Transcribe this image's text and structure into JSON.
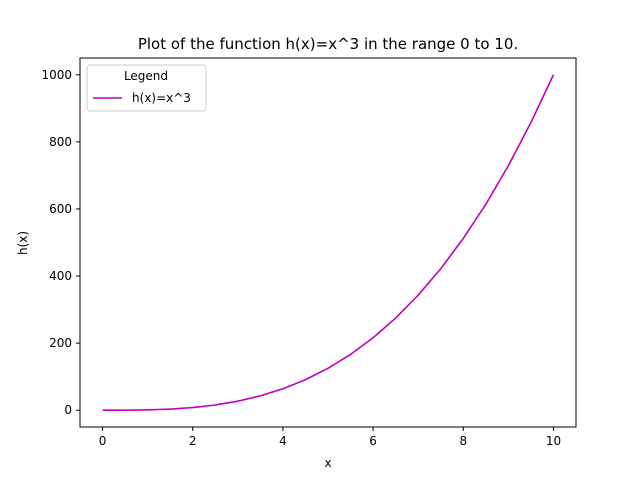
{
  "chart_data": {
    "type": "line",
    "title": "Plot of the function h(x)=x^3 in the range 0 to 10.",
    "xlabel": "x",
    "ylabel": "h(x)",
    "xlim": [
      -0.5,
      10.5
    ],
    "ylim": [
      -50,
      1050
    ],
    "xticks": [
      0,
      2,
      4,
      6,
      8,
      10
    ],
    "yticks": [
      0,
      200,
      400,
      600,
      800,
      1000
    ],
    "grid": false,
    "legend": {
      "title": "Legend",
      "placement": "top-left"
    },
    "series": [
      {
        "name": "h(x)=x^3",
        "color": "#bf00bf",
        "x": [
          0,
          0.5,
          1,
          1.5,
          2,
          2.5,
          3,
          3.5,
          4,
          4.5,
          5,
          5.5,
          6,
          6.5,
          7,
          7.5,
          8,
          8.5,
          9,
          9.5,
          10
        ],
        "y": [
          0,
          0.125,
          1,
          3.375,
          8,
          15.625,
          27,
          42.875,
          64,
          91.125,
          125,
          166.375,
          216,
          274.625,
          343,
          421.875,
          512,
          614.125,
          729,
          857.375,
          1000
        ]
      }
    ]
  }
}
